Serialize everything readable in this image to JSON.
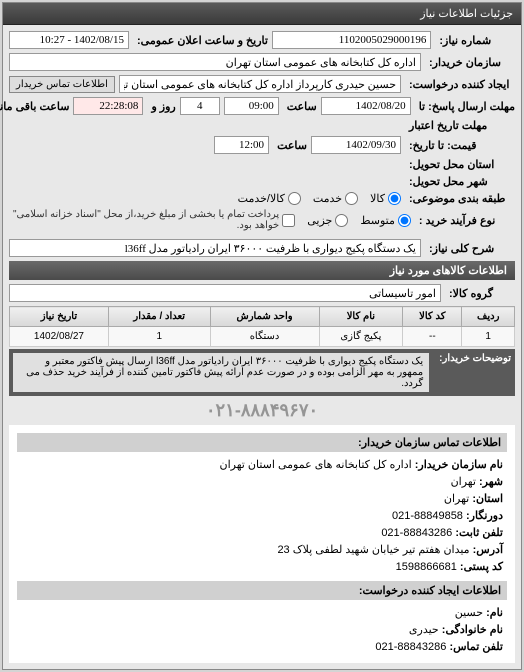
{
  "panel_title": "جزئیات اطلاعات نیاز",
  "fields": {
    "request_no_label": "شماره نیاز:",
    "request_no": "1102005029000196",
    "announce_label": "تاریخ و ساعت اعلان عمومی:",
    "announce_value": "1402/08/15 - 10:27",
    "buyer_label": "سازمان خریدار:",
    "buyer_value": "اداره کل کتابخانه های عمومی استان تهران",
    "requester_label": "ایجاد کننده درخواست:",
    "requester_value": "حسین حیدری کارپرداز اداره کل کتابخانه های عمومی استان تهران",
    "buyer_contact_btn": "اطلاعات تماس خریدار",
    "deadline_label": "مهلت ارسال پاسخ: تا",
    "deadline_date": "1402/08/20",
    "deadline_time_label": "ساعت",
    "deadline_time": "09:00",
    "days_label": "روز و",
    "days_value": "4",
    "remaining_label": "ساعت باقی مانده",
    "remaining_value": "22:28:08",
    "valid_until_label": "قیمت: تا تاریخ:",
    "valid_until_date": "1402/09/30",
    "valid_until_time": "12:00",
    "credit_label": "مهلت تاریخ اعتبار",
    "delivery_city_label": "استان محل تحویل:",
    "delivery_addr_label": "شهر محل تحویل:",
    "category_label": "طبقه بندی موضوعی:",
    "radio_goods": "کالا",
    "radio_service": "خدمت",
    "radio_goods_service": "کالا/خدمت",
    "process_label": "نوع فرآیند خرید :",
    "radio_mid": "متوسط",
    "radio_small": "جزیی",
    "process_note": "پرداخت تمام یا بخشی از مبلغ خرید،از محل \"اسناد خزانه اسلامی\" خواهد بود.",
    "desc_label": "شرح کلی نیاز:",
    "desc_value": "یک دستگاه پکیج دیواری با ظرفیت ۳۶۰۰۰ ایران رادیاتور مدل l36ff"
  },
  "goods_header": "اطلاعات کالاهای مورد نیاز",
  "group_label": "گروه کالا:",
  "group_value": "امور تاسیساتی",
  "table": {
    "headers": [
      "ردیف",
      "کد کالا",
      "نام کالا",
      "واحد شمارش",
      "تعداد / مقدار",
      "تاریخ نیاز"
    ],
    "rows": [
      [
        "1",
        "--",
        "پکیج گازی",
        "دستگاه",
        "1",
        "1402/08/27"
      ]
    ]
  },
  "buyer_desc_label": "توضیحات خریدار:",
  "buyer_desc": "یک دستگاه پکیج دیواری با ظرفیت ۳۶۰۰۰ ایران رادیاتور مدل l36ff ارسال پیش فاکتور معتبر و ممهور به مهر الزامی بوده و در صورت عدم ارائه پیش فاکتور تامین کننده از فرآیند خرید حذف می گردد.",
  "phone_stamp": "۰۲۱-۸۸۸۴۹۶۷۰",
  "contact": {
    "title": "اطلاعات تماس سازمان خریدار:",
    "org_label": "نام سازمان خریدار:",
    "org": "اداره کل کتابخانه های عمومی استان تهران",
    "city_label": "شهر:",
    "city": "تهران",
    "province_label": "استان:",
    "province": "تهران",
    "fax_label": "دورنگار:",
    "fax": "88849858-021",
    "phone_label": "تلفن ثابت:",
    "phone": "88843286-021",
    "addr_label": "آدرس:",
    "addr": "میدان هفتم تیر خیابان شهید لطفی پلاک 23",
    "postal_label": "کد پستی:",
    "postal": "1598866681",
    "creator_header": "اطلاعات ایجاد کننده درخواست:",
    "name_label": "نام:",
    "name": "حسین",
    "family_label": "نام خانوادگی:",
    "family": "حیدری",
    "cphone_label": "تلفن تماس:",
    "cphone": "88843286-021"
  }
}
